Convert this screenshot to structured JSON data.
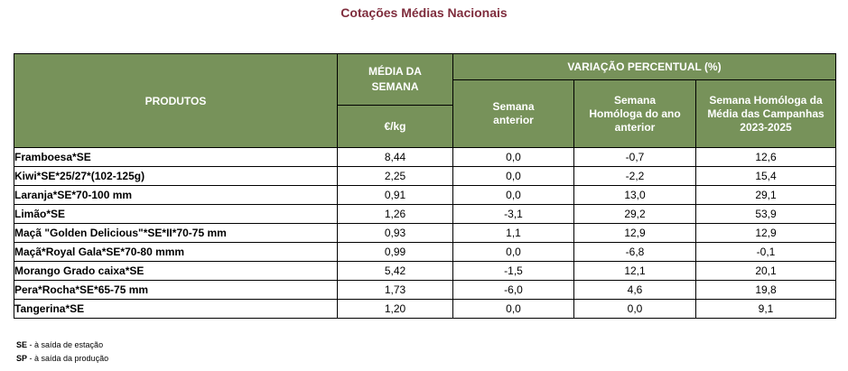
{
  "title": "Cotações Médias Nacionais",
  "headers": {
    "produtos": "PRODUTOS",
    "media_semana": "MÉDIA DA SEMANA",
    "unit": "€/kg",
    "variacao": "VARIAÇÃO PERCENTUAL (%)",
    "sem_anterior": "Semana anterior",
    "sem_homologa": "Semana Homóloga do ano anterior",
    "sem_homologa_media": "Semana Homóloga da Média das Campanhas 2023-2025"
  },
  "rows": [
    {
      "produto": "Framboesa*SE",
      "media": "8,44",
      "anterior": "0,0",
      "homologa": "-0,7",
      "homologa_media": "12,6"
    },
    {
      "produto": "Kiwi*SE*25/27*(102-125g)",
      "media": "2,25",
      "anterior": "0,0",
      "homologa": "-2,2",
      "homologa_media": "15,4"
    },
    {
      "produto": "Laranja*SE*70-100 mm",
      "media": "0,91",
      "anterior": "0,0",
      "homologa": "13,0",
      "homologa_media": "29,1"
    },
    {
      "produto": "Limão*SE",
      "media": "1,26",
      "anterior": "-3,1",
      "homologa": "29,2",
      "homologa_media": "53,9"
    },
    {
      "produto": "Maçã \"Golden Delicious\"*SE*II*70-75 mm",
      "media": "0,93",
      "anterior": "1,1",
      "homologa": "12,9",
      "homologa_media": "12,9"
    },
    {
      "produto": "Maçã*Royal Gala*SE*70-80 mmm",
      "media": "0,99",
      "anterior": "0,0",
      "homologa": "-6,8",
      "homologa_media": "-0,1"
    },
    {
      "produto": "Morango Grado caixa*SE",
      "media": "5,42",
      "anterior": "-1,5",
      "homologa": "12,1",
      "homologa_media": "20,1"
    },
    {
      "produto": "Pera*Rocha*SE*65-75 mm",
      "media": "1,73",
      "anterior": "-6,0",
      "homologa": "4,6",
      "homologa_media": "19,8"
    },
    {
      "produto": "Tangerina*SE",
      "media": "1,20",
      "anterior": "0,0",
      "homologa": "0,0",
      "homologa_media": "9,1"
    }
  ],
  "notes": [
    {
      "abbr": "SE",
      "text": " - à saída de estação"
    },
    {
      "abbr": "SP",
      "text": " - à saída da produção"
    }
  ]
}
